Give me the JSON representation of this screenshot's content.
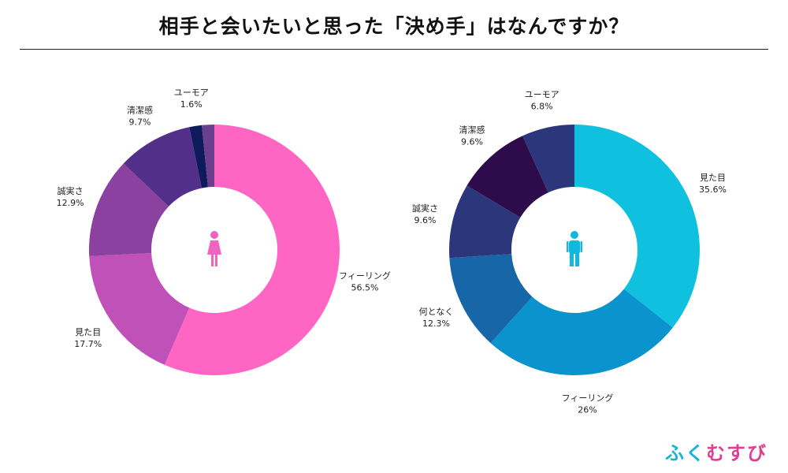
{
  "title": "相手と会いたいと思った「決め手」はなんですか？",
  "brand": [
    "ふ",
    "く",
    "む",
    "す",
    "び"
  ],
  "colors": {
    "female_icon": "#ef64bf",
    "male_icon": "#10b9dc"
  },
  "chart_data": [
    {
      "type": "pie",
      "variant": "donut",
      "group_icon": "female-icon",
      "slices": [
        {
          "label": "フィーリング",
          "value": 56.5,
          "value_label": "56.5%",
          "color": "#ff66c4"
        },
        {
          "label": "見た目",
          "value": 17.7,
          "value_label": "17.7%",
          "color": "#c051b8"
        },
        {
          "label": "誠実さ",
          "value": 12.9,
          "value_label": "12.9%",
          "color": "#8a419f"
        },
        {
          "label": "清潔感",
          "value": 9.7,
          "value_label": "9.7%",
          "color": "#52308a"
        },
        {
          "label": "ユーモア",
          "value": 1.6,
          "value_label": "1.6%",
          "color": "#0e1a5c"
        },
        {
          "label": "",
          "value": 1.6,
          "value_label": "",
          "color": "#6b3e8f"
        }
      ]
    },
    {
      "type": "pie",
      "variant": "donut",
      "group_icon": "male-icon",
      "slices": [
        {
          "label": "見た目",
          "value": 35.6,
          "value_label": "35.6%",
          "color": "#0fc1df"
        },
        {
          "label": "フィーリング",
          "value": 26,
          "value_label": "26%",
          "color": "#0a93cd"
        },
        {
          "label": "何となく",
          "value": 12.3,
          "value_label": "12.3%",
          "color": "#1766a8"
        },
        {
          "label": "誠実さ",
          "value": 9.6,
          "value_label": "9.6%",
          "color": "#2b377a"
        },
        {
          "label": "清潔感",
          "value": 9.6,
          "value_label": "9.6%",
          "color": "#2e0b4a"
        },
        {
          "label": "ユーモア",
          "value": 6.8,
          "value_label": "6.8%",
          "color": "#2b377a"
        }
      ]
    }
  ]
}
